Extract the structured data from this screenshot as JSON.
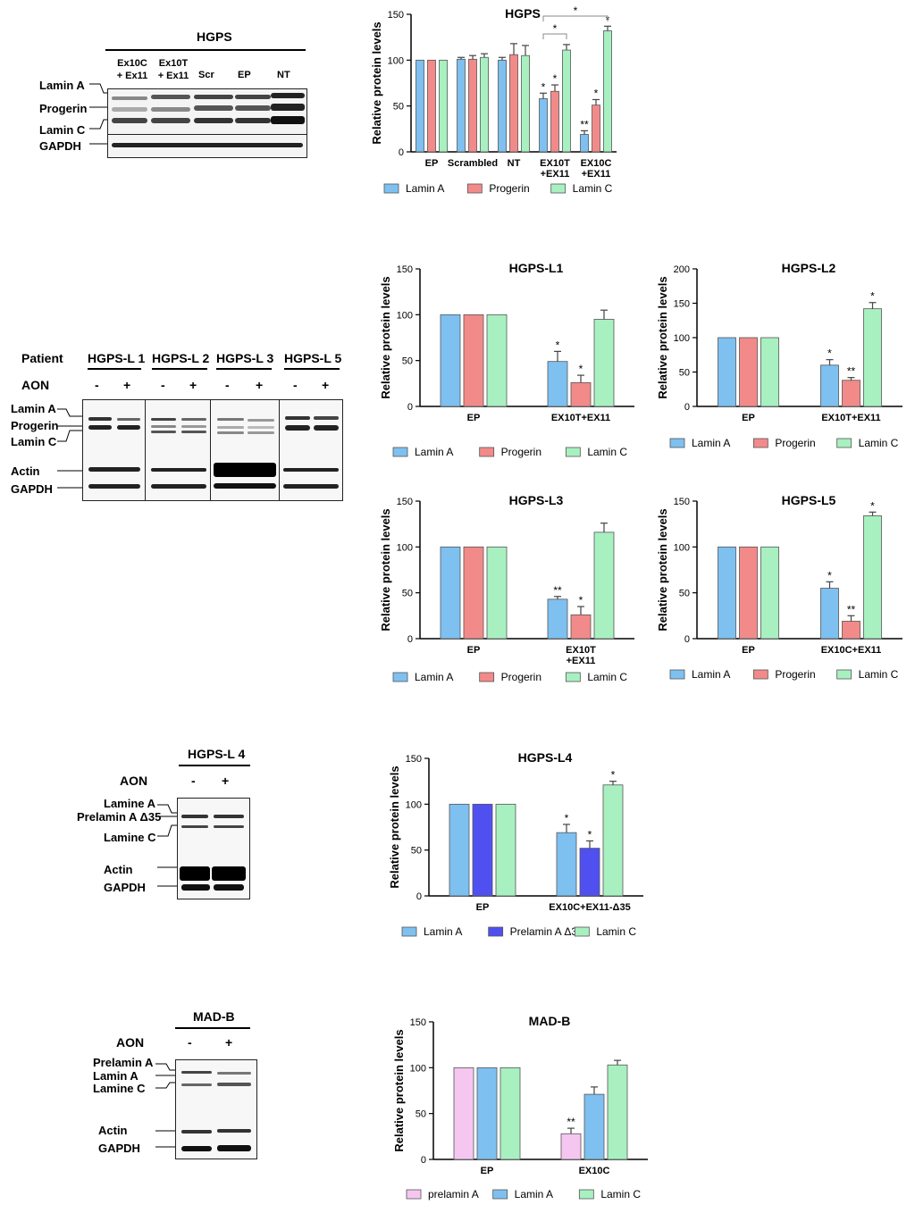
{
  "blots": [
    {
      "id": "hgps",
      "title": "HGPS",
      "lanes": [
        "Ex10C\n+ Ex11",
        "Ex10T\n+ Ex11",
        "Scr",
        "EP",
        "NT"
      ],
      "bands": [
        "Lamin A",
        "Progerin",
        "Lamin C",
        "GAPDH"
      ]
    },
    {
      "id": "patients",
      "header_label": "Patient",
      "aon_label": "AON",
      "groups": [
        "HGPS-L 1",
        "HGPS-L 2",
        "HGPS-L 3",
        "HGPS-L 5"
      ],
      "signs": [
        "-",
        "+"
      ],
      "bands": [
        "Lamin A",
        "Progerin",
        "Lamin C",
        "Actin",
        "GAPDH"
      ]
    },
    {
      "id": "l4",
      "title": "HGPS-L 4",
      "aon_label": "AON",
      "signs": [
        "-",
        "+"
      ],
      "bands": [
        "Lamine A",
        "Prelamin A Δ35",
        "Lamine C",
        "Actin",
        "GAPDH"
      ]
    },
    {
      "id": "madb",
      "title": "MAD-B",
      "aon_label": "AON",
      "signs": [
        "-",
        "+"
      ],
      "bands": [
        "Prelamin A",
        "Lamin A",
        "Lamine C",
        "Actin",
        "GAPDH"
      ]
    }
  ],
  "chart_data": [
    {
      "id": "hgps",
      "type": "bar",
      "title": "HGPS",
      "ylabel": "Relative protein levels",
      "ylim": [
        0,
        150
      ],
      "yticks": [
        0,
        50,
        100,
        150
      ],
      "categories": [
        "EP",
        "Scrambled",
        "NT",
        "EX10T\n+EX11",
        "EX10C\n+EX11"
      ],
      "series": [
        {
          "name": "Lamin A",
          "color": "#7ec0f0",
          "values": [
            100,
            101,
            100,
            58,
            19
          ],
          "errors": [
            0,
            2,
            3,
            6,
            4
          ],
          "sig": [
            "",
            "",
            "",
            "*",
            "**"
          ]
        },
        {
          "name": "Progerin",
          "color": "#f28a8a",
          "values": [
            100,
            101,
            106,
            66,
            51
          ],
          "errors": [
            0,
            4,
            12,
            7,
            6
          ],
          "sig": [
            "",
            "",
            "",
            "*",
            "*"
          ]
        },
        {
          "name": "Lamin C",
          "color": "#a8f0c0",
          "values": [
            100,
            103,
            105,
            111,
            132
          ],
          "errors": [
            0,
            4,
            11,
            6,
            5
          ],
          "sig": [
            "",
            "",
            "",
            "",
            "*"
          ]
        }
      ],
      "comparisons": [
        {
          "label": "*",
          "from": [
            3,
            0
          ],
          "to": [
            3,
            2
          ]
        },
        {
          "label": "*",
          "from": [
            3,
            0
          ],
          "to": [
            4,
            2
          ]
        }
      ],
      "legend": "bottom"
    },
    {
      "id": "hgpsl1",
      "type": "bar",
      "title": "HGPS-L1",
      "ylabel": "Relative protein levels",
      "ylim": [
        0,
        150
      ],
      "yticks": [
        0,
        50,
        100,
        150
      ],
      "categories": [
        "EP",
        "EX10T+EX11"
      ],
      "series": [
        {
          "name": "Lamin A",
          "color": "#7ec0f0",
          "values": [
            100,
            49
          ],
          "errors": [
            0,
            11
          ],
          "sig": [
            "",
            "*"
          ]
        },
        {
          "name": "Progerin",
          "color": "#f28a8a",
          "values": [
            100,
            26
          ],
          "errors": [
            0,
            8
          ],
          "sig": [
            "",
            "*"
          ]
        },
        {
          "name": "Lamin C",
          "color": "#a8f0c0",
          "values": [
            100,
            95
          ],
          "errors": [
            0,
            10
          ],
          "sig": [
            "",
            ""
          ]
        }
      ],
      "legend": "bottom"
    },
    {
      "id": "hgpsl2",
      "type": "bar",
      "title": "HGPS-L2",
      "ylabel": "Relative protein levels",
      "ylim": [
        0,
        200
      ],
      "yticks": [
        0,
        50,
        100,
        150,
        200
      ],
      "categories": [
        "EP",
        "EX10T+EX11"
      ],
      "series": [
        {
          "name": "Lamin A",
          "color": "#7ec0f0",
          "values": [
            100,
            60
          ],
          "errors": [
            0,
            8
          ],
          "sig": [
            "",
            "*"
          ]
        },
        {
          "name": "Progerin",
          "color": "#f28a8a",
          "values": [
            100,
            38
          ],
          "errors": [
            0,
            4
          ],
          "sig": [
            "",
            "**"
          ]
        },
        {
          "name": "Lamin C",
          "color": "#a8f0c0",
          "values": [
            100,
            142
          ],
          "errors": [
            0,
            9
          ],
          "sig": [
            "",
            "*"
          ]
        }
      ],
      "legend": "bottom"
    },
    {
      "id": "hgpsl3",
      "type": "bar",
      "title": "HGPS-L3",
      "ylabel": "Relative protein levels",
      "ylim": [
        0,
        150
      ],
      "yticks": [
        0,
        50,
        100,
        150
      ],
      "categories": [
        "EP",
        "EX10T\n+EX11"
      ],
      "series": [
        {
          "name": "Lamin A",
          "color": "#7ec0f0",
          "values": [
            100,
            43
          ],
          "errors": [
            0,
            3
          ],
          "sig": [
            "",
            "**"
          ]
        },
        {
          "name": "Progerin",
          "color": "#f28a8a",
          "values": [
            100,
            26
          ],
          "errors": [
            0,
            9
          ],
          "sig": [
            "",
            "*"
          ]
        },
        {
          "name": "Lamin C",
          "color": "#a8f0c0",
          "values": [
            100,
            116
          ],
          "errors": [
            0,
            10
          ],
          "sig": [
            "",
            ""
          ]
        }
      ],
      "legend": "bottom"
    },
    {
      "id": "hgpsl5",
      "type": "bar",
      "title": "HGPS-L5",
      "ylabel": "Relative protein levels",
      "ylim": [
        0,
        150
      ],
      "yticks": [
        0,
        50,
        100,
        150
      ],
      "categories": [
        "EP",
        "EX10C+EX11"
      ],
      "series": [
        {
          "name": "Lamin A",
          "color": "#7ec0f0",
          "values": [
            100,
            55
          ],
          "errors": [
            0,
            7
          ],
          "sig": [
            "",
            "*"
          ]
        },
        {
          "name": "Progerin",
          "color": "#f28a8a",
          "values": [
            100,
            19
          ],
          "errors": [
            0,
            6
          ],
          "sig": [
            "",
            "**"
          ]
        },
        {
          "name": "Lamin C",
          "color": "#a8f0c0",
          "values": [
            100,
            134
          ],
          "errors": [
            0,
            4
          ],
          "sig": [
            "",
            "*"
          ]
        }
      ],
      "legend": "bottom"
    },
    {
      "id": "hgpsl4",
      "type": "bar",
      "title": "HGPS-L4",
      "ylabel": "Relative protein levels",
      "ylim": [
        0,
        150
      ],
      "yticks": [
        0,
        50,
        100,
        150
      ],
      "categories": [
        "EP",
        "EX10C+EX11-Δ35"
      ],
      "series": [
        {
          "name": "Lamin A",
          "color": "#7ec0f0",
          "values": [
            100,
            69
          ],
          "errors": [
            0,
            9
          ],
          "sig": [
            "",
            "*"
          ]
        },
        {
          "name": "Prelamin A Δ35",
          "color": "#5050f0",
          "values": [
            100,
            52
          ],
          "errors": [
            0,
            8
          ],
          "sig": [
            "",
            "*"
          ]
        },
        {
          "name": "Lamin C",
          "color": "#a8f0c0",
          "values": [
            100,
            121
          ],
          "errors": [
            0,
            4
          ],
          "sig": [
            "",
            "*"
          ]
        }
      ],
      "legend": "bottom"
    },
    {
      "id": "madb",
      "type": "bar",
      "title": "MAD-B",
      "ylabel": "Relative protein levels",
      "ylim": [
        0,
        150
      ],
      "yticks": [
        0,
        50,
        100,
        150
      ],
      "categories": [
        "EP",
        "EX10C"
      ],
      "series": [
        {
          "name": "prelamin A",
          "color": "#f4c6f0",
          "values": [
            100,
            28
          ],
          "errors": [
            0,
            6
          ],
          "sig": [
            "",
            "**"
          ]
        },
        {
          "name": "Lamin A",
          "color": "#7ec0f0",
          "values": [
            100,
            71
          ],
          "errors": [
            0,
            8
          ],
          "sig": [
            "",
            ""
          ]
        },
        {
          "name": "Lamin C",
          "color": "#a8f0c0",
          "values": [
            100,
            103
          ],
          "errors": [
            0,
            5
          ],
          "sig": [
            "",
            ""
          ]
        }
      ],
      "legend": "bottom"
    }
  ]
}
